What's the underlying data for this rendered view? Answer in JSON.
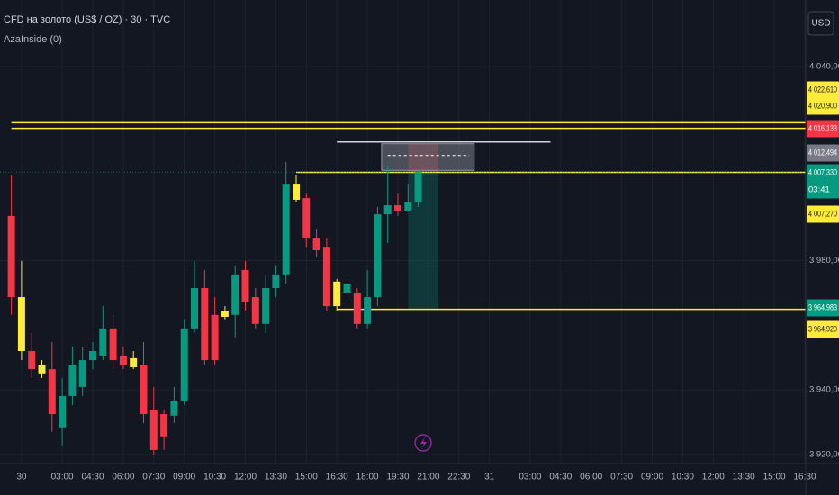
{
  "header": {
    "symbol": "CFD на золото (US$ / OZ) · 30 · TVC",
    "indicator": "AzaInside (0)",
    "currency": "USD"
  },
  "chart_data": {
    "type": "candlestick",
    "categories": [
      null,
      "30",
      null,
      null,
      null,
      "03:00",
      null,
      null,
      "04:30",
      null,
      null,
      "06:00",
      null,
      null,
      "07:30",
      null,
      null,
      "09:00",
      null,
      null,
      "10:30",
      null,
      null,
      "12:00",
      null,
      null,
      "13:30",
      null,
      null,
      "15:00",
      null,
      null,
      "16:30",
      null,
      null,
      "18:00",
      null,
      null,
      "19:30",
      null,
      null,
      "21:00",
      null,
      null,
      "22:30",
      null,
      null,
      "31",
      null,
      null,
      null,
      "03:00",
      null,
      null,
      "04:30",
      null,
      null,
      "06:00",
      null,
      null,
      "07:30",
      null,
      null,
      "09:00",
      null,
      null,
      "10:30",
      null,
      null,
      "12:00",
      null,
      null,
      "13:30",
      null,
      null,
      "15:00",
      null,
      null,
      "16:30"
    ],
    "open": [
      3993.8,
      3968.7,
      3952.0,
      3947.8,
      3946.4,
      3928.4,
      3938.1,
      3940.9,
      3949.2,
      3950.6,
      3959.0,
      3950.6,
      3949.8,
      3947.8,
      3933.9,
      3932.5,
      3932.0,
      3936.7,
      3959.0,
      3971.5,
      3963.2,
      3964.3,
      3963.2,
      3977.1,
      3968.7,
      3960.4,
      3971.5,
      3975.7,
      4003.5,
      3999.3,
      3986.8,
      3984.0,
      3973.5,
      3970.1,
      3970.1,
      3960.4,
      3968.7,
      3994.3,
      3997.1,
      3995.4,
      3998.0,
      null,
      null,
      null,
      null,
      null,
      null,
      null,
      null,
      null,
      null,
      null,
      null,
      null,
      null,
      null,
      null,
      null,
      null,
      null,
      null,
      null,
      null,
      null,
      null,
      null,
      null,
      null,
      null,
      null,
      null,
      null,
      null,
      null,
      null,
      null,
      null,
      null,
      null
    ],
    "high": [
      4006.3,
      3979.9,
      3957.6,
      3949.2,
      3954.8,
      3943.7,
      3953.4,
      3953.4,
      3954.8,
      3965.9,
      3963.2,
      3953.4,
      3952.0,
      3954.8,
      3940.9,
      3933.9,
      3940.9,
      3961.8,
      3979.9,
      3977.1,
      3968.7,
      3965.9,
      3978.5,
      3979.9,
      3971.5,
      3975.7,
      3978.5,
      4010.5,
      4006.3,
      4000.7,
      3989.6,
      3986.8,
      3974.3,
      3974.3,
      3971.5,
      3977.1,
      3996.6,
      4009.1,
      4000.7,
      4003.5,
      4007.7,
      null,
      null,
      null,
      null,
      null,
      null,
      null,
      null,
      null,
      null,
      null,
      null,
      null,
      null,
      null,
      null,
      null,
      null,
      null,
      null,
      null,
      null,
      null,
      null,
      null,
      null,
      null,
      null,
      null,
      null,
      null,
      null,
      null,
      null,
      null,
      null,
      null,
      null
    ],
    "low": [
      3963.2,
      3949.2,
      3943.7,
      3943.7,
      3927.0,
      3922.8,
      3935.3,
      3938.1,
      3946.4,
      3949.2,
      3946.4,
      3946.4,
      3946.4,
      3929.7,
      3920.0,
      3921.4,
      3929.7,
      3935.3,
      3957.6,
      3947.8,
      3947.8,
      3961.8,
      3956.2,
      3964.5,
      3959.0,
      3957.6,
      3968.7,
      3972.9,
      3998.0,
      3984.0,
      3981.2,
      3964.5,
      3964.5,
      3968.7,
      3959.0,
      3959.0,
      3965.9,
      3985.4,
      3993.8,
      3995.2,
      3996.6,
      null,
      null,
      null,
      null,
      null,
      null,
      null,
      null,
      null,
      null,
      null,
      null,
      null,
      null,
      null,
      null,
      null,
      null,
      null,
      null,
      null,
      null,
      null,
      null,
      null,
      null,
      null,
      null,
      null,
      null,
      null,
      null,
      null,
      null,
      null,
      null,
      null,
      null
    ],
    "close": [
      3968.7,
      3952.0,
      3946.4,
      3945.1,
      3932.5,
      3938.1,
      3947.8,
      3949.2,
      3952.0,
      3959.0,
      3949.2,
      3947.8,
      3947.0,
      3932.5,
      3921.4,
      3925.6,
      3936.7,
      3959.0,
      3971.5,
      3949.2,
      3949.2,
      3962.6,
      3975.7,
      3967.3,
      3960.4,
      3971.5,
      3975.7,
      4003.5,
      3998.8,
      3986.8,
      3983.2,
      3965.9,
      3965.9,
      3972.9,
      3960.4,
      3968.7,
      3994.3,
      3997.1,
      3995.4,
      3998.0,
      4007.33,
      null,
      null,
      null,
      null,
      null,
      null,
      null,
      null,
      null,
      null,
      null,
      null,
      null,
      null,
      null,
      null,
      null,
      null,
      null,
      null,
      null,
      null,
      null,
      null,
      null,
      null,
      null,
      null,
      null,
      null,
      null,
      null,
      null,
      null,
      null,
      null,
      null,
      null
    ],
    "inside_bars": [
      1,
      3,
      12,
      21,
      28,
      32
    ],
    "up_color": "#089981",
    "down_color": "#f23645",
    "inside_color": "#ffeb3b",
    "ylim": [
      3917.2,
      4060.6
    ],
    "yticks": [
      {
        "value": 3920,
        "label": "3 920,000"
      },
      {
        "value": 3940,
        "label": "3 940,000"
      },
      {
        "value": 3980,
        "label": "3 980,000"
      },
      {
        "value": 4040,
        "label": "4 040,000"
      }
    ],
    "grid": true,
    "price_labels": [
      {
        "value": 4022.61,
        "label": "4 022,610",
        "color": "#ffeb3b"
      },
      {
        "value": 4020.9,
        "label": "4 020,900",
        "color": "#ffeb3b"
      },
      {
        "value": 4016.133,
        "label": "4 016,133",
        "color": "#f23645"
      },
      {
        "value": 4012.494,
        "label": "4 012,494",
        "color": "#787b86"
      },
      {
        "value": 4007.33,
        "label": "4 007,330",
        "color": "#089981"
      },
      {
        "value": 4007.27,
        "label": "4 007,270",
        "color": "#ffeb3b"
      },
      {
        "value": 3964.983,
        "label": "3 964,983",
        "color": "#089981"
      },
      {
        "value": 3964.92,
        "label": "3 964,920",
        "color": "#ffeb3b"
      }
    ],
    "countdown": "03:41"
  }
}
